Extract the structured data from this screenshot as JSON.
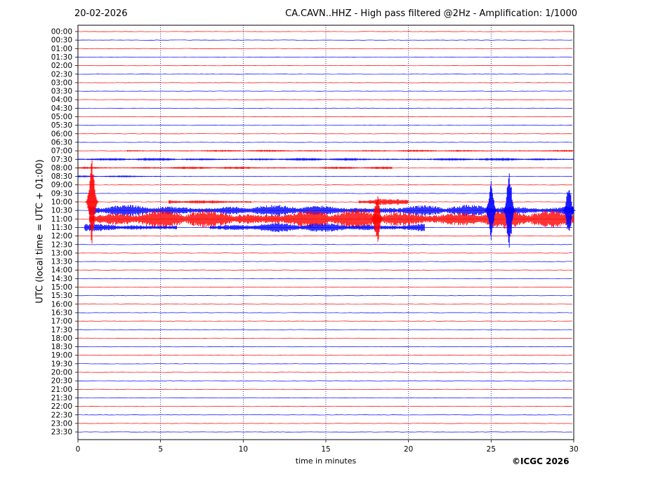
{
  "header": {
    "date": "20-02-2026",
    "title": "CA.CAVN..HHZ - High pass filtered @2Hz - Amplification: 1/1000"
  },
  "footer": {
    "copyright": "©ICGC 2026"
  },
  "colors": {
    "even_rows": "#ff0000",
    "odd_rows": "#0000ff",
    "grid": "#000080"
  },
  "chart_data": {
    "type": "line",
    "title": "CA.CAVN..HHZ - High pass filtered @2Hz - Amplification: 1/1000",
    "xlabel": "time in minutes",
    "ylabel": "UTC (local time = UTC + 01:00)",
    "xlim": [
      0,
      30
    ],
    "xticks": [
      "0",
      "5",
      "10",
      "15",
      "20",
      "25",
      "30"
    ],
    "vertical_grid_minutes": [
      5,
      10,
      15,
      20,
      25
    ],
    "rows": [
      "00:00",
      "00:30",
      "01:00",
      "01:30",
      "02:00",
      "02:30",
      "03:00",
      "03:30",
      "04:00",
      "04:30",
      "05:00",
      "05:30",
      "06:00",
      "06:30",
      "07:00",
      "07:30",
      "08:00",
      "08:30",
      "09:00",
      "09:30",
      "10:00",
      "10:30",
      "11:00",
      "11:30",
      "12:00",
      "12:30",
      "13:00",
      "13:30",
      "14:00",
      "14:30",
      "15:00",
      "15:30",
      "16:00",
      "16:30",
      "17:00",
      "17:30",
      "18:00",
      "18:30",
      "19:00",
      "19:30",
      "20:00",
      "20:30",
      "21:00",
      "21:30",
      "22:00",
      "22:30",
      "23:00",
      "23:30"
    ],
    "trace_color_pattern": [
      "red",
      "blue"
    ],
    "activity": [
      {
        "row": "07:00",
        "start_min": 3.0,
        "end_min": 30,
        "amp": 0.12
      },
      {
        "row": "07:30",
        "start_min": 0,
        "end_min": 30,
        "amp": 0.18
      },
      {
        "row": "08:00",
        "start_min": 0,
        "end_min": 19,
        "amp": 0.16
      },
      {
        "row": "08:30",
        "start_min": 0,
        "end_min": 5,
        "amp": 0.12
      },
      {
        "row": "10:00",
        "start_min": 5.5,
        "end_min": 10.5,
        "amp": 0.25
      },
      {
        "row": "10:00",
        "start_min": 17,
        "end_min": 20,
        "amp": 0.4
      },
      {
        "row": "10:30",
        "start_min": 0.7,
        "end_min": 30,
        "amp": 0.7
      },
      {
        "row": "11:00",
        "start_min": 0.7,
        "end_min": 30,
        "amp": 1.2
      },
      {
        "row": "11:30",
        "start_min": 0.4,
        "end_min": 6,
        "amp": 0.5
      },
      {
        "row": "11:30",
        "start_min": 8,
        "end_min": 21,
        "amp": 0.6
      },
      {
        "row": "14:00",
        "start_min": 0,
        "end_min": 0.8,
        "amp": 0.05
      }
    ],
    "events": [
      {
        "row": "10:00",
        "minute": 0.85,
        "peak_amp": 5.5
      },
      {
        "row": "10:30",
        "minute": 25,
        "peak_amp": 3.5
      },
      {
        "row": "10:30",
        "minute": 26.1,
        "peak_amp": 5.0
      },
      {
        "row": "10:30",
        "minute": 29.7,
        "peak_amp": 3.0
      },
      {
        "row": "11:00",
        "minute": 18.1,
        "peak_amp": 3.0
      }
    ]
  }
}
